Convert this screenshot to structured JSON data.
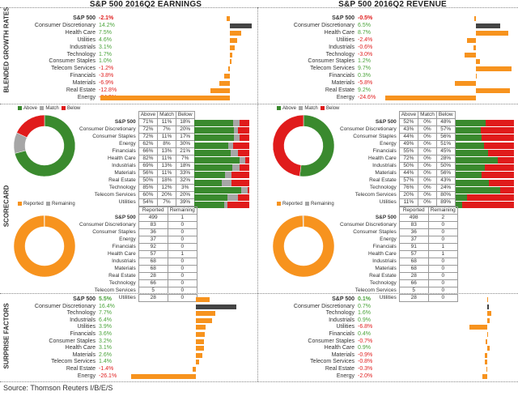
{
  "titles": {
    "earnings": "S&P 500 2016Q2 EARNINGS",
    "revenue": "S&P 500 2016Q2 REVENUE"
  },
  "section_labels": {
    "growth": "BLENDED GROWTH RATES",
    "scorecard": "SCORECARD",
    "surprise": "SURPRISE FACTORS"
  },
  "legends": {
    "above": "Above",
    "match": "Match",
    "below": "Below",
    "reported": "Reported",
    "remaining": "Remaining"
  },
  "colors": {
    "orange": "#f7931e",
    "dark": "#444444",
    "green": "#3a8a2e",
    "gray": "#a6a6a6",
    "red": "#e01b1b",
    "positive_text": "#4aa33a",
    "negative_text": "#e02020"
  },
  "source": "Source: Thomson Reuters I/B/E/S",
  "chart_data": [
    {
      "type": "bar",
      "id": "earnings_growth",
      "categories": [
        "S&P 500",
        "Consumer Discretionary",
        "Health Care",
        "Utilities",
        "Industrials",
        "Technology",
        "Consumer Staples",
        "Telecom Services",
        "Financials",
        "Materials",
        "Real Estate",
        "Energy"
      ],
      "labels": [
        "-2.1%",
        "14.2%",
        "7.5%",
        "4.6%",
        "3.1%",
        "1.7%",
        "1.0%",
        "-1.2%",
        "-3.8%",
        "-6.9%",
        "-12.8%",
        "-84.9%"
      ],
      "values": [
        -2.1,
        14.2,
        7.5,
        4.6,
        3.1,
        1.7,
        1.0,
        -1.2,
        -3.8,
        -6.9,
        -12.8,
        -84.9
      ]
    },
    {
      "type": "bar",
      "id": "revenue_growth",
      "categories": [
        "S&P 500",
        "Consumer Discretionary",
        "Health Care",
        "Utilities",
        "Industrials",
        "Technology",
        "Consumer Staples",
        "Telecom Services",
        "Financials",
        "Materials",
        "Real Estate",
        "Energy"
      ],
      "labels": [
        "-0.5%",
        "6.5%",
        "8.7%",
        "-2.4%",
        "-0.6%",
        "-3.0%",
        "1.2%",
        "9.7%",
        "0.3%",
        "-5.8%",
        "9.2%",
        "-24.6%"
      ],
      "values": [
        -0.5,
        6.5,
        8.7,
        -2.4,
        -0.6,
        -3.0,
        1.2,
        9.7,
        0.3,
        -5.8,
        9.2,
        -24.6
      ]
    },
    {
      "type": "table",
      "id": "earnings_scorecard",
      "columns": [
        "Above",
        "Match",
        "Below"
      ],
      "rows": [
        {
          "name": "S&P 500",
          "cells": [
            "71%",
            "11%",
            "18%"
          ]
        },
        {
          "name": "Consumer Discretionary",
          "cells": [
            "72%",
            "7%",
            "20%"
          ]
        },
        {
          "name": "Consumer Staples",
          "cells": [
            "72%",
            "11%",
            "17%"
          ]
        },
        {
          "name": "Energy",
          "cells": [
            "62%",
            "8%",
            "30%"
          ]
        },
        {
          "name": "Financials",
          "cells": [
            "66%",
            "13%",
            "21%"
          ]
        },
        {
          "name": "Health Care",
          "cells": [
            "82%",
            "11%",
            "7%"
          ]
        },
        {
          "name": "Industrials",
          "cells": [
            "69%",
            "13%",
            "18%"
          ]
        },
        {
          "name": "Materials",
          "cells": [
            "56%",
            "11%",
            "33%"
          ]
        },
        {
          "name": "Real Estate",
          "cells": [
            "50%",
            "18%",
            "32%"
          ]
        },
        {
          "name": "Technology",
          "cells": [
            "85%",
            "12%",
            "3%"
          ]
        },
        {
          "name": "Telecom Services",
          "cells": [
            "60%",
            "20%",
            "20%"
          ]
        },
        {
          "name": "Utilities",
          "cells": [
            "54%",
            "7%",
            "39%"
          ]
        }
      ],
      "donut": [
        71,
        11,
        18
      ]
    },
    {
      "type": "table",
      "id": "revenue_scorecard",
      "columns": [
        "Above",
        "Match",
        "Below"
      ],
      "rows": [
        {
          "name": "S&P 500",
          "cells": [
            "52%",
            "0%",
            "48%"
          ]
        },
        {
          "name": "Consumer Discretionary",
          "cells": [
            "43%",
            "0%",
            "57%"
          ]
        },
        {
          "name": "Consumer Staples",
          "cells": [
            "44%",
            "0%",
            "56%"
          ]
        },
        {
          "name": "Energy",
          "cells": [
            "49%",
            "0%",
            "51%"
          ]
        },
        {
          "name": "Financials",
          "cells": [
            "55%",
            "0%",
            "45%"
          ]
        },
        {
          "name": "Health Care",
          "cells": [
            "72%",
            "0%",
            "28%"
          ]
        },
        {
          "name": "Industrials",
          "cells": [
            "50%",
            "0%",
            "50%"
          ]
        },
        {
          "name": "Materials",
          "cells": [
            "44%",
            "0%",
            "56%"
          ]
        },
        {
          "name": "Real Estate",
          "cells": [
            "57%",
            "0%",
            "43%"
          ]
        },
        {
          "name": "Technology",
          "cells": [
            "76%",
            "0%",
            "24%"
          ]
        },
        {
          "name": "Telecom Services",
          "cells": [
            "20%",
            "0%",
            "80%"
          ]
        },
        {
          "name": "Utilities",
          "cells": [
            "11%",
            "0%",
            "89%"
          ]
        }
      ],
      "donut": [
        52,
        0,
        48
      ]
    },
    {
      "type": "table",
      "id": "earnings_reported",
      "columns": [
        "Reported",
        "Remaining"
      ],
      "rows": [
        {
          "name": "S&P 500",
          "cells": [
            "499",
            "1"
          ]
        },
        {
          "name": "Consumer Discretionary",
          "cells": [
            "83",
            "0"
          ]
        },
        {
          "name": "Consumer Staples",
          "cells": [
            "36",
            "0"
          ]
        },
        {
          "name": "Energy",
          "cells": [
            "37",
            "0"
          ]
        },
        {
          "name": "Financials",
          "cells": [
            "92",
            "0"
          ]
        },
        {
          "name": "Health Care",
          "cells": [
            "57",
            "1"
          ]
        },
        {
          "name": "Industrials",
          "cells": [
            "68",
            "0"
          ]
        },
        {
          "name": "Materials",
          "cells": [
            "68",
            "0"
          ]
        },
        {
          "name": "Real Estate",
          "cells": [
            "28",
            "0"
          ]
        },
        {
          "name": "Technology",
          "cells": [
            "66",
            "0"
          ]
        },
        {
          "name": "Telecom Services",
          "cells": [
            "5",
            "0"
          ]
        },
        {
          "name": "Utilities",
          "cells": [
            "28",
            "0"
          ]
        }
      ],
      "donut": [
        499,
        1
      ]
    },
    {
      "type": "table",
      "id": "revenue_reported",
      "columns": [
        "Reported",
        "Remaining"
      ],
      "rows": [
        {
          "name": "S&P 500",
          "cells": [
            "498",
            "2"
          ]
        },
        {
          "name": "Consumer Discretionary",
          "cells": [
            "83",
            "0"
          ]
        },
        {
          "name": "Consumer Staples",
          "cells": [
            "36",
            "0"
          ]
        },
        {
          "name": "Energy",
          "cells": [
            "37",
            "0"
          ]
        },
        {
          "name": "Financials",
          "cells": [
            "91",
            "1"
          ]
        },
        {
          "name": "Health Care",
          "cells": [
            "57",
            "1"
          ]
        },
        {
          "name": "Industrials",
          "cells": [
            "68",
            "0"
          ]
        },
        {
          "name": "Materials",
          "cells": [
            "68",
            "0"
          ]
        },
        {
          "name": "Real Estate",
          "cells": [
            "28",
            "0"
          ]
        },
        {
          "name": "Technology",
          "cells": [
            "66",
            "0"
          ]
        },
        {
          "name": "Telecom Services",
          "cells": [
            "5",
            "0"
          ]
        },
        {
          "name": "Utilities",
          "cells": [
            "28",
            "0"
          ]
        }
      ],
      "donut": [
        498,
        2
      ]
    },
    {
      "type": "bar",
      "id": "earnings_surprise",
      "categories": [
        "S&P 500",
        "Consumer Discretionary",
        "Technology",
        "Industrials",
        "Utilities",
        "Financials",
        "Consumer Staples",
        "Health Care",
        "Materials",
        "Telecom Services",
        "Real Estate",
        "Energy"
      ],
      "labels": [
        "5.5%",
        "16.4%",
        "7.7%",
        "6.4%",
        "3.9%",
        "3.6%",
        "3.2%",
        "3.1%",
        "2.6%",
        "1.4%",
        "-1.4%",
        "-26.1%"
      ],
      "values": [
        5.5,
        16.4,
        7.7,
        6.4,
        3.9,
        3.6,
        3.2,
        3.1,
        2.6,
        1.4,
        -1.4,
        -26.1
      ]
    },
    {
      "type": "bar",
      "id": "revenue_surprise",
      "categories": [
        "S&P 500",
        "Consumer Discretionary",
        "Technology",
        "Industrials",
        "Utilities",
        "Financials",
        "Consumer Staples",
        "Health Care",
        "Materials",
        "Telecom Services",
        "Real Estate",
        "Energy"
      ],
      "labels": [
        "0.1%",
        "0.7%",
        "1.6%",
        "0.9%",
        "-6.8%",
        "0.4%",
        "-0.7%",
        "0.9%",
        "-0.9%",
        "-0.8%",
        "-0.3%",
        "-2.0%"
      ],
      "values": [
        0.1,
        0.7,
        1.6,
        0.9,
        -6.8,
        0.4,
        -0.7,
        0.9,
        -0.9,
        -0.8,
        -0.3,
        -2.0
      ]
    }
  ]
}
